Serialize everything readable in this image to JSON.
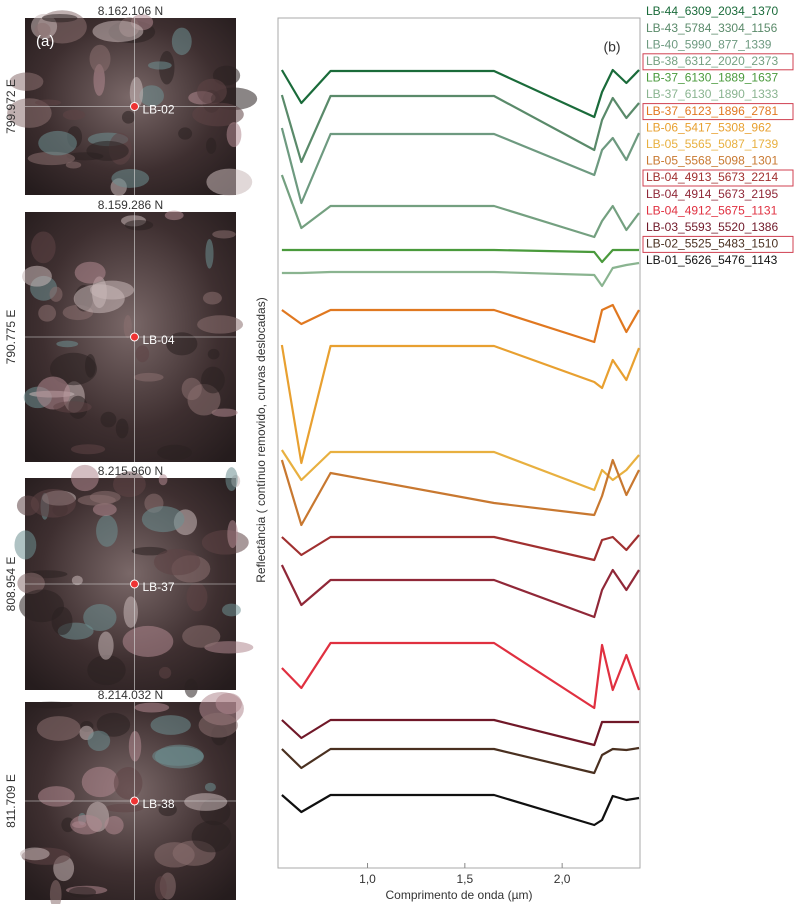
{
  "panel_label": "(a)",
  "panels": [
    {
      "north": "8.162.106 N",
      "east": "799.972 E",
      "site": "LB-02"
    },
    {
      "north": "8.159.286 N",
      "east": "790.775 E",
      "site": "LB-04"
    },
    {
      "north": "8.215.960 N",
      "east": "808.954 E",
      "site": "LB-37"
    },
    {
      "north": "8.214.032 N",
      "east": "811.709 E",
      "site": "LB-38"
    }
  ],
  "chart_data": {
    "type": "line",
    "annotation": "(b)",
    "x_label": "Comprimento de onda (µm)",
    "y_label": "Reflectância ( contínuo removido, curvas deslocadas)",
    "x": [
      0.56,
      0.66,
      0.81,
      1.65,
      2.165,
      2.205,
      2.26,
      2.33,
      2.395
    ],
    "xlim": [
      0.54,
      2.4
    ],
    "xticks": [
      {
        "value": 1.0,
        "label": "1,0"
      },
      {
        "value": 1.5,
        "label": "1,5"
      },
      {
        "value": 2.0,
        "label": "2,0"
      }
    ],
    "ylim": [
      0,
      850
    ],
    "series": [
      {
        "name": "LB-44_6309_2034_1370",
        "color": "#1a6b3a",
        "values": [
          798,
          765,
          797,
          797,
          751,
          776,
          798,
          785,
          798
        ]
      },
      {
        "name": "LB-43_5784_3304_1156",
        "color": "#5a8a6a",
        "values": [
          773,
          706,
          772,
          772,
          718,
          748,
          770,
          750,
          765
        ]
      },
      {
        "name": "LB-40_5990_877_1339",
        "color": "#6e9a80",
        "values": [
          740,
          665,
          734,
          734,
          693,
          718,
          730,
          708,
          735
        ]
      },
      {
        "name": "LB-38_6312_2020_2373",
        "color": "#74a080",
        "highlight": true,
        "values": [
          693,
          640,
          662,
          662,
          631,
          647,
          662,
          638,
          655
        ]
      },
      {
        "name": "LB-37_6130_1889_1637",
        "color": "#4a9a3c",
        "values": [
          618,
          618,
          618,
          618,
          616,
          606,
          618,
          618,
          618
        ]
      },
      {
        "name": "LB-37_6130_1890_1333",
        "color": "#8ab490",
        "values": [
          595,
          595,
          596,
          596,
          593,
          582,
          600,
          603,
          605
        ]
      },
      {
        "name": "LB-37_6123_1896_2781",
        "color": "#e07820",
        "highlight": true,
        "values": [
          558,
          544,
          558,
          558,
          526,
          558,
          563,
          536,
          558
        ]
      },
      {
        "name": "LB-06_5417_5308_962",
        "color": "#e8a030",
        "values": [
          523,
          405,
          522,
          522,
          486,
          480,
          508,
          488,
          520
        ]
      },
      {
        "name": "LB-05_5565_5087_1739",
        "color": "#e8b040",
        "values": [
          418,
          388,
          416,
          416,
          378,
          398,
          388,
          398,
          413
        ]
      },
      {
        "name": "LB-05_5568_5098_1301",
        "color": "#c87830",
        "values": [
          408,
          343,
          395,
          365,
          353,
          372,
          408,
          373,
          398
        ]
      },
      {
        "name": "LB-04_4913_5673_2214",
        "color": "#a03030",
        "highlight": true,
        "values": [
          331,
          313,
          331,
          331,
          308,
          328,
          331,
          318,
          333
        ]
      },
      {
        "name": "LB-04_4914_5673_2195",
        "color": "#902838",
        "values": [
          303,
          263,
          288,
          288,
          251,
          278,
          298,
          278,
          298
        ]
      },
      {
        "name": "LB-04_4912_5675_1131",
        "color": "#e03040",
        "values": [
          200,
          180,
          225,
          225,
          160,
          223,
          178,
          213,
          178
        ]
      },
      {
        "name": "LB-03_5593_5520_1386",
        "color": "#701828",
        "values": [
          148,
          130,
          148,
          148,
          123,
          146,
          146,
          146,
          146
        ]
      },
      {
        "name": "LB-02_5525_5483_1510",
        "color": "#4a3020",
        "highlight": true,
        "values": [
          119,
          100,
          119,
          119,
          95,
          113,
          119,
          118,
          120
        ]
      },
      {
        "name": "LB-01_5626_5476_1143",
        "color": "#101010",
        "values": [
          73,
          56,
          73,
          73,
          43,
          48,
          72,
          68,
          70
        ]
      }
    ]
  }
}
